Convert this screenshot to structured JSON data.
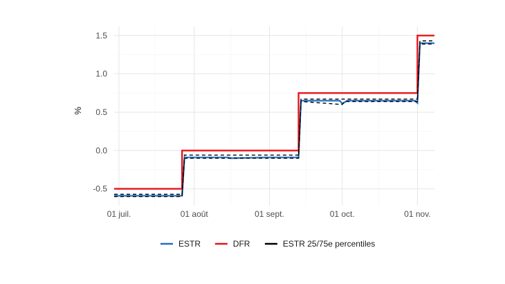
{
  "chart_data": {
    "type": "line",
    "title": "",
    "xlabel": "",
    "ylabel": "%",
    "x_start": "2022-06-29",
    "x_end": "2022-11-08",
    "ylim": [
      -0.72,
      1.62
    ],
    "x_ticks": [
      {
        "date": "2022-07-01",
        "label": "01 juil."
      },
      {
        "date": "2022-08-01",
        "label": "01 août"
      },
      {
        "date": "2022-09-01",
        "label": "01 sept."
      },
      {
        "date": "2022-10-01",
        "label": "01 oct."
      },
      {
        "date": "2022-11-01",
        "label": "01 nov."
      }
    ],
    "y_ticks": [
      {
        "value": -0.5,
        "label": "-0.5"
      },
      {
        "value": 0.0,
        "label": "0.0"
      },
      {
        "value": 0.5,
        "label": "0.5"
      },
      {
        "value": 1.0,
        "label": "1.0"
      },
      {
        "value": 1.5,
        "label": "1.5"
      }
    ],
    "grid": true,
    "legend_position": "bottom",
    "series": [
      {
        "name": "ESTR",
        "color": "#1f6fc5",
        "style": "solid",
        "points": [
          [
            "2022-06-29",
            -0.59
          ],
          [
            "2022-07-27",
            -0.59
          ],
          [
            "2022-07-28",
            -0.09
          ],
          [
            "2022-08-15",
            -0.09
          ],
          [
            "2022-08-16",
            -0.1
          ],
          [
            "2022-08-31",
            -0.09
          ],
          [
            "2022-09-13",
            -0.09
          ],
          [
            "2022-09-14",
            0.65
          ],
          [
            "2022-09-30",
            0.65
          ],
          [
            "2022-10-01",
            0.61
          ],
          [
            "2022-10-03",
            0.65
          ],
          [
            "2022-10-31",
            0.65
          ],
          [
            "2022-11-01",
            0.62
          ],
          [
            "2022-11-02",
            1.4
          ],
          [
            "2022-11-08",
            1.4
          ]
        ]
      },
      {
        "name": "DFR",
        "color": "#e8141a",
        "style": "solid",
        "points": [
          [
            "2022-06-29",
            -0.5
          ],
          [
            "2022-07-27",
            -0.5
          ],
          [
            "2022-07-27",
            0.0
          ],
          [
            "2022-09-13",
            0.0
          ],
          [
            "2022-09-13",
            0.75
          ],
          [
            "2022-11-01",
            0.75
          ],
          [
            "2022-11-01",
            1.5
          ],
          [
            "2022-11-08",
            1.5
          ]
        ]
      },
      {
        "name": "ESTR 25/75e percentiles",
        "color": "#000000",
        "style": "dashed",
        "bands": [
          [
            [
              "2022-06-29",
              -0.57
            ],
            [
              "2022-07-27",
              -0.57
            ],
            [
              "2022-07-28",
              -0.06
            ],
            [
              "2022-09-13",
              -0.06
            ],
            [
              "2022-09-14",
              0.67
            ],
            [
              "2022-11-01",
              0.67
            ],
            [
              "2022-11-02",
              1.43
            ],
            [
              "2022-11-08",
              1.43
            ]
          ],
          [
            [
              "2022-06-29",
              -0.6
            ],
            [
              "2022-07-27",
              -0.6
            ],
            [
              "2022-07-28",
              -0.1
            ],
            [
              "2022-09-13",
              -0.1
            ],
            [
              "2022-09-14",
              0.64
            ],
            [
              "2022-10-01",
              0.6
            ],
            [
              "2022-10-02",
              0.64
            ],
            [
              "2022-11-01",
              0.64
            ],
            [
              "2022-11-02",
              1.39
            ],
            [
              "2022-11-08",
              1.39
            ]
          ]
        ]
      }
    ]
  }
}
